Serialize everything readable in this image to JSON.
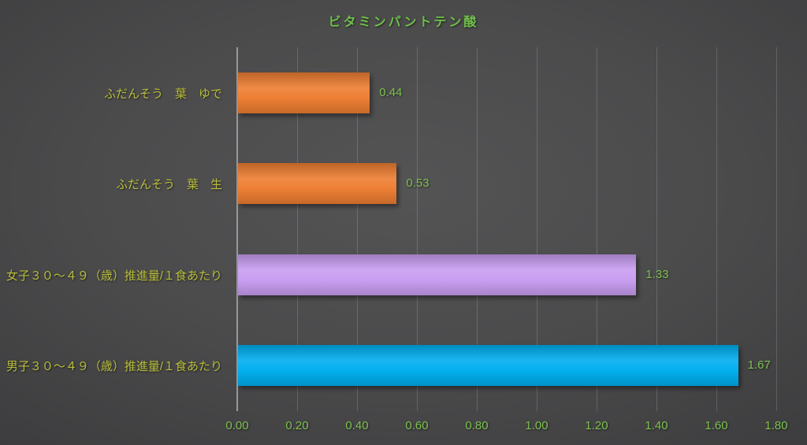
{
  "chart_data": {
    "type": "bar",
    "orientation": "horizontal",
    "title": "ビタミンパントテン酸",
    "categories": [
      "ふだんそう　葉　ゆで",
      "ふだんそう　葉　生",
      "女子３０～４９（歳）推進量/１食あたり",
      "男子３０～４９（歳）推進量/１食あたり"
    ],
    "values": [
      0.44,
      0.53,
      1.33,
      1.67
    ],
    "value_labels": [
      "0.44",
      "0.53",
      "1.33",
      "1.67"
    ],
    "bar_colors": [
      "#ed7d31",
      "#ed7d31",
      "#c89df1",
      "#00aeef"
    ],
    "xlim": [
      0,
      1.8
    ],
    "x_tick_values": [
      0,
      0.2,
      0.4,
      0.6,
      0.8,
      1.0,
      1.2,
      1.4,
      1.6,
      1.8
    ],
    "x_tick_labels": [
      "0.00",
      "0.20",
      "0.40",
      "0.60",
      "0.80",
      "1.00",
      "1.20",
      "1.40",
      "1.60",
      "1.80"
    ],
    "grid": true,
    "legend": false,
    "ylabel": "",
    "xlabel": ""
  },
  "style_colors": {
    "title_text": "#6fc04a",
    "category_label_text": "#b9bd3a",
    "value_label_text": "#7dc24e",
    "tick_label_text": "#7dc24e",
    "axis_line": "#98989c",
    "gridline": "rgba(255,255,255,0.16)",
    "background_center": "#535354",
    "background_corner": "#262628"
  }
}
